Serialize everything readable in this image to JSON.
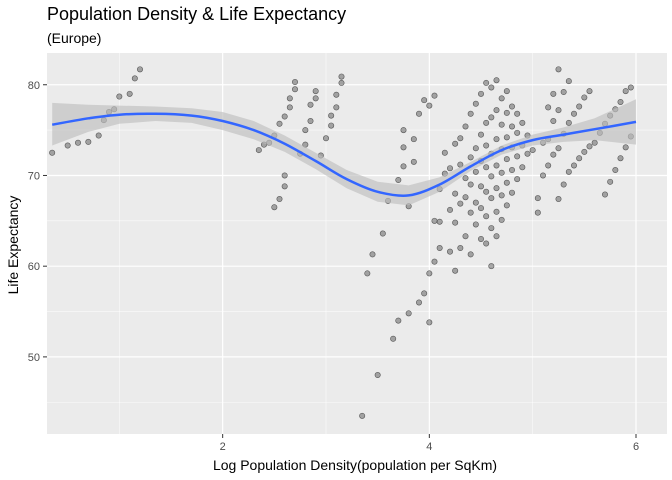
{
  "chart_data": {
    "type": "scatter",
    "title": "Population Density & Life Expectancy",
    "subtitle": "(Europe)",
    "xlabel": "Log Population Density(population per SqKm)",
    "ylabel": "Life Expectancy",
    "xlim": [
      0.3,
      6.3
    ],
    "ylim": [
      41.5,
      83.5
    ],
    "x_ticks": [
      2,
      4,
      6
    ],
    "x_minor_ticks": [
      1,
      3,
      5
    ],
    "y_ticks": [
      50,
      60,
      70,
      80
    ],
    "y_minor_ticks": [
      45,
      55,
      65,
      75
    ],
    "grid": true,
    "colors": {
      "panel": "#ebebeb",
      "grid_major": "#ffffff",
      "points": "#333333",
      "smooth_line": "#3366ff",
      "ribbon": "#bfbfbf"
    },
    "smooth": {
      "method": "loess",
      "x": [
        0.35,
        0.7,
        1.0,
        1.35,
        1.7,
        2.0,
        2.3,
        2.6,
        2.9,
        3.2,
        3.5,
        3.8,
        4.1,
        4.4,
        4.7,
        5.0,
        5.3,
        5.6,
        6.0
      ],
      "y": [
        75.6,
        76.3,
        76.7,
        76.8,
        76.6,
        76.0,
        75.0,
        73.5,
        71.6,
        69.6,
        68.2,
        67.8,
        69.0,
        71.0,
        72.8,
        73.9,
        74.5,
        75.1,
        75.9
      ],
      "lower": [
        73.3,
        74.8,
        75.7,
        76.0,
        75.8,
        75.0,
        74.0,
        72.6,
        70.7,
        68.6,
        67.1,
        66.7,
        68.2,
        70.5,
        72.3,
        73.3,
        73.7,
        73.9,
        73.4
      ],
      "upper": [
        78.0,
        77.8,
        77.7,
        77.6,
        77.4,
        77.0,
        76.0,
        74.4,
        72.5,
        70.6,
        69.3,
        68.9,
        69.8,
        71.5,
        73.3,
        74.5,
        75.3,
        76.3,
        78.4
      ]
    },
    "points": [
      [
        0.35,
        72.5
      ],
      [
        0.5,
        73.3
      ],
      [
        0.6,
        73.6
      ],
      [
        0.7,
        73.7
      ],
      [
        0.8,
        74.4
      ],
      [
        0.85,
        76.1
      ],
      [
        0.9,
        77.0
      ],
      [
        0.95,
        77.3
      ],
      [
        1.0,
        78.7
      ],
      [
        1.1,
        79.0
      ],
      [
        1.15,
        80.7
      ],
      [
        1.2,
        81.7
      ],
      [
        2.35,
        72.8
      ],
      [
        2.4,
        73.4
      ],
      [
        2.45,
        73.6
      ],
      [
        2.5,
        74.4
      ],
      [
        2.5,
        66.5
      ],
      [
        2.55,
        67.4
      ],
      [
        2.6,
        68.8
      ],
      [
        2.6,
        70.0
      ],
      [
        2.55,
        75.7
      ],
      [
        2.6,
        76.5
      ],
      [
        2.65,
        77.5
      ],
      [
        2.65,
        78.5
      ],
      [
        2.7,
        79.5
      ],
      [
        2.7,
        80.3
      ],
      [
        2.75,
        72.4
      ],
      [
        2.8,
        73.4
      ],
      [
        2.8,
        75.0
      ],
      [
        2.85,
        76.0
      ],
      [
        2.85,
        77.8
      ],
      [
        2.9,
        78.5
      ],
      [
        2.9,
        79.3
      ],
      [
        2.95,
        72.2
      ],
      [
        3.0,
        74.1
      ],
      [
        3.05,
        75.5
      ],
      [
        3.05,
        76.6
      ],
      [
        3.1,
        77.5
      ],
      [
        3.1,
        78.9
      ],
      [
        3.15,
        80.2
      ],
      [
        3.15,
        80.9
      ],
      [
        3.35,
        43.5
      ],
      [
        3.4,
        59.2
      ],
      [
        3.45,
        61.3
      ],
      [
        3.5,
        48.0
      ],
      [
        3.55,
        63.6
      ],
      [
        3.6,
        67.2
      ],
      [
        3.65,
        52.0
      ],
      [
        3.7,
        54.0
      ],
      [
        3.7,
        69.5
      ],
      [
        3.75,
        71.0
      ],
      [
        3.75,
        73.1
      ],
      [
        3.75,
        75.0
      ],
      [
        3.8,
        54.8
      ],
      [
        3.8,
        66.6
      ],
      [
        3.85,
        71.5
      ],
      [
        3.85,
        74.0
      ],
      [
        3.9,
        56.0
      ],
      [
        3.9,
        76.8
      ],
      [
        3.95,
        57.0
      ],
      [
        3.95,
        78.3
      ],
      [
        4.0,
        59.2
      ],
      [
        4.0,
        53.8
      ],
      [
        4.0,
        77.7
      ],
      [
        4.05,
        60.5
      ],
      [
        4.05,
        65.0
      ],
      [
        4.05,
        78.8
      ],
      [
        4.1,
        62.0
      ],
      [
        4.1,
        64.9
      ],
      [
        4.1,
        68.5
      ],
      [
        4.15,
        70.2
      ],
      [
        4.15,
        72.5
      ],
      [
        4.2,
        61.6
      ],
      [
        4.2,
        66.2
      ],
      [
        4.2,
        70.8
      ],
      [
        4.25,
        59.5
      ],
      [
        4.25,
        64.8
      ],
      [
        4.25,
        68.0
      ],
      [
        4.25,
        73.5
      ],
      [
        4.3,
        62.0
      ],
      [
        4.3,
        66.9
      ],
      [
        4.3,
        71.2
      ],
      [
        4.3,
        74.1
      ],
      [
        4.35,
        63.3
      ],
      [
        4.35,
        67.6
      ],
      [
        4.35,
        69.7
      ],
      [
        4.35,
        75.4
      ],
      [
        4.4,
        61.3
      ],
      [
        4.4,
        65.9
      ],
      [
        4.4,
        69.0
      ],
      [
        4.4,
        72.0
      ],
      [
        4.4,
        76.8
      ],
      [
        4.45,
        64.6
      ],
      [
        4.45,
        67.0
      ],
      [
        4.45,
        70.4
      ],
      [
        4.45,
        73.0
      ],
      [
        4.45,
        77.9
      ],
      [
        4.5,
        63.0
      ],
      [
        4.5,
        66.4
      ],
      [
        4.5,
        68.8
      ],
      [
        4.5,
        71.6
      ],
      [
        4.5,
        74.5
      ],
      [
        4.5,
        79.0
      ],
      [
        4.55,
        62.5
      ],
      [
        4.55,
        65.5
      ],
      [
        4.55,
        68.2
      ],
      [
        4.55,
        70.9
      ],
      [
        4.55,
        73.3
      ],
      [
        4.55,
        75.8
      ],
      [
        4.55,
        80.2
      ],
      [
        4.6,
        60.0
      ],
      [
        4.6,
        64.2
      ],
      [
        4.6,
        67.5
      ],
      [
        4.6,
        69.9
      ],
      [
        4.6,
        72.4
      ],
      [
        4.6,
        76.4
      ],
      [
        4.6,
        79.7
      ],
      [
        4.65,
        63.3
      ],
      [
        4.65,
        66.0
      ],
      [
        4.65,
        68.6
      ],
      [
        4.65,
        71.1
      ],
      [
        4.65,
        74.0
      ],
      [
        4.65,
        77.2
      ],
      [
        4.65,
        80.5
      ],
      [
        4.7,
        65.1
      ],
      [
        4.7,
        67.8
      ],
      [
        4.7,
        70.3
      ],
      [
        4.7,
        72.9
      ],
      [
        4.7,
        75.6
      ],
      [
        4.7,
        78.5
      ],
      [
        4.75,
        66.7
      ],
      [
        4.75,
        69.2
      ],
      [
        4.75,
        71.8
      ],
      [
        4.75,
        74.2
      ],
      [
        4.75,
        76.9
      ],
      [
        4.75,
        79.3
      ],
      [
        4.8,
        68.1
      ],
      [
        4.8,
        70.6
      ],
      [
        4.8,
        73.1
      ],
      [
        4.8,
        75.4
      ],
      [
        4.8,
        77.6
      ],
      [
        4.85,
        69.6
      ],
      [
        4.85,
        72.1
      ],
      [
        4.85,
        74.7
      ],
      [
        4.85,
        76.8
      ],
      [
        4.9,
        70.9
      ],
      [
        4.9,
        73.3
      ],
      [
        4.9,
        75.8
      ],
      [
        4.95,
        72.4
      ],
      [
        4.95,
        74.4
      ],
      [
        5.0,
        72.8
      ],
      [
        5.05,
        65.9
      ],
      [
        5.05,
        67.5
      ],
      [
        5.1,
        70.0
      ],
      [
        5.1,
        73.6
      ],
      [
        5.15,
        71.1
      ],
      [
        5.15,
        74.0
      ],
      [
        5.15,
        77.5
      ],
      [
        5.2,
        72.3
      ],
      [
        5.2,
        76.0
      ],
      [
        5.2,
        79.0
      ],
      [
        5.25,
        67.4
      ],
      [
        5.25,
        73.0
      ],
      [
        5.25,
        77.2
      ],
      [
        5.25,
        81.7
      ],
      [
        5.3,
        69.0
      ],
      [
        5.3,
        74.6
      ],
      [
        5.3,
        79.2
      ],
      [
        5.35,
        70.4
      ],
      [
        5.35,
        75.8
      ],
      [
        5.35,
        80.4
      ],
      [
        5.4,
        71.1
      ],
      [
        5.4,
        76.8
      ],
      [
        5.45,
        71.9
      ],
      [
        5.45,
        77.6
      ],
      [
        5.5,
        72.6
      ],
      [
        5.5,
        78.6
      ],
      [
        5.55,
        73.2
      ],
      [
        5.55,
        79.3
      ],
      [
        5.6,
        73.6
      ],
      [
        5.65,
        74.7
      ],
      [
        5.7,
        67.9
      ],
      [
        5.7,
        75.7
      ],
      [
        5.75,
        69.3
      ],
      [
        5.75,
        76.6
      ],
      [
        5.8,
        70.6
      ],
      [
        5.8,
        77.3
      ],
      [
        5.85,
        71.9
      ],
      [
        5.85,
        78.1
      ],
      [
        5.9,
        73.1
      ],
      [
        5.9,
        79.3
      ],
      [
        5.95,
        74.3
      ],
      [
        5.95,
        79.7
      ]
    ]
  }
}
